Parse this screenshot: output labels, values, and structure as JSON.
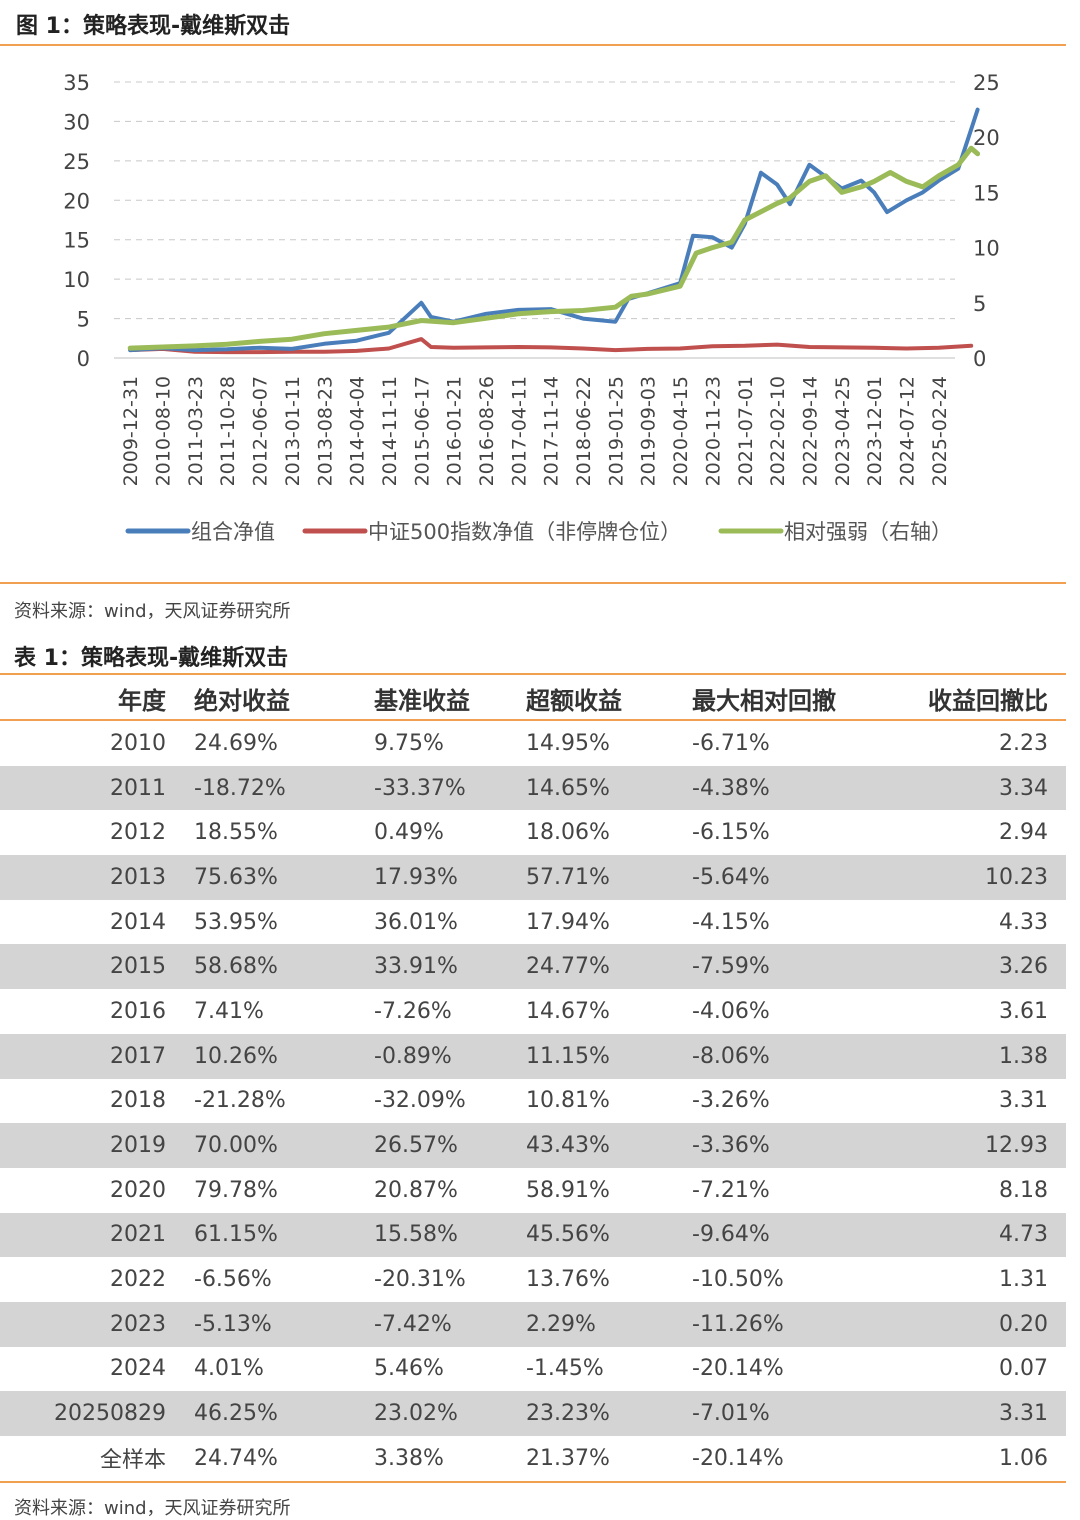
{
  "figure": {
    "title": "图 1：策略表现-戴维斯双击",
    "source": "资料来源：wind，天风证券研究所"
  },
  "chart_data": {
    "type": "line",
    "x_ticks": [
      "2009-12-31",
      "2010-08-10",
      "2011-03-23",
      "2011-10-28",
      "2012-06-07",
      "2013-01-11",
      "2013-08-23",
      "2014-04-04",
      "2014-11-11",
      "2015-06-17",
      "2016-01-21",
      "2016-08-26",
      "2017-04-11",
      "2017-11-14",
      "2018-06-22",
      "2019-01-25",
      "2019-09-03",
      "2020-04-15",
      "2020-11-23",
      "2021-07-01",
      "2022-02-10",
      "2022-09-14",
      "2023-04-25",
      "2023-12-01",
      "2024-07-12",
      "2025-02-24"
    ],
    "y_left": {
      "min": 0,
      "max": 35,
      "ticks": [
        0,
        5,
        10,
        15,
        20,
        25,
        30,
        35
      ]
    },
    "y_right": {
      "min": 0,
      "max": 25,
      "ticks": [
        0,
        5,
        10,
        15,
        20,
        25
      ]
    },
    "grid": "horizontal dashed",
    "legend_position": "bottom",
    "series": [
      {
        "name": "组合净值",
        "axis": "left",
        "color": "#4A7EBB",
        "points": [
          [
            0,
            1.0
          ],
          [
            1,
            1.25
          ],
          [
            2,
            1.0
          ],
          [
            3,
            1.1
          ],
          [
            4,
            1.3
          ],
          [
            5,
            1.15
          ],
          [
            6,
            1.8
          ],
          [
            7,
            2.2
          ],
          [
            8,
            3.2
          ],
          [
            9,
            7.0
          ],
          [
            9.3,
            5.2
          ],
          [
            10,
            4.6
          ],
          [
            11,
            5.6
          ],
          [
            12,
            6.1
          ],
          [
            13,
            6.2
          ],
          [
            14,
            5.0
          ],
          [
            15,
            4.6
          ],
          [
            15.4,
            7.5
          ],
          [
            16,
            8.2
          ],
          [
            17,
            9.5
          ],
          [
            17.4,
            15.5
          ],
          [
            18,
            15.3
          ],
          [
            18.6,
            14.0
          ],
          [
            19,
            17.0
          ],
          [
            19.5,
            23.5
          ],
          [
            20,
            22.0
          ],
          [
            20.4,
            19.5
          ],
          [
            21,
            24.5
          ],
          [
            21.5,
            23.0
          ],
          [
            22,
            21.5
          ],
          [
            22.6,
            22.5
          ],
          [
            23,
            21.0
          ],
          [
            23.4,
            18.5
          ],
          [
            24,
            20.0
          ],
          [
            24.5,
            21.0
          ],
          [
            25,
            22.5
          ],
          [
            25.6,
            24.0
          ],
          [
            26,
            29.0
          ],
          [
            26.2,
            31.5
          ]
        ]
      },
      {
        "name": "中证500指数净值（非停牌仓位）",
        "axis": "left",
        "color": "#C0504D",
        "points": [
          [
            0,
            1.0
          ],
          [
            1,
            1.15
          ],
          [
            2,
            0.8
          ],
          [
            3,
            0.75
          ],
          [
            4,
            0.75
          ],
          [
            5,
            0.8
          ],
          [
            6,
            0.8
          ],
          [
            7,
            0.9
          ],
          [
            8,
            1.2
          ],
          [
            9,
            2.4
          ],
          [
            9.3,
            1.4
          ],
          [
            10,
            1.3
          ],
          [
            11,
            1.35
          ],
          [
            12,
            1.4
          ],
          [
            13,
            1.35
          ],
          [
            14,
            1.2
          ],
          [
            15,
            1.0
          ],
          [
            16,
            1.15
          ],
          [
            17,
            1.2
          ],
          [
            18,
            1.5
          ],
          [
            19,
            1.55
          ],
          [
            20,
            1.7
          ],
          [
            21,
            1.4
          ],
          [
            22,
            1.35
          ],
          [
            23,
            1.3
          ],
          [
            24,
            1.2
          ],
          [
            25,
            1.3
          ],
          [
            26,
            1.55
          ]
        ]
      },
      {
        "name": "相对强弱（右轴）",
        "axis": "right",
        "color": "#9BBB59",
        "points": [
          [
            0,
            0.9
          ],
          [
            1,
            1.0
          ],
          [
            2,
            1.1
          ],
          [
            3,
            1.25
          ],
          [
            4,
            1.5
          ],
          [
            5,
            1.7
          ],
          [
            6,
            2.2
          ],
          [
            7,
            2.5
          ],
          [
            8,
            2.8
          ],
          [
            9,
            3.4
          ],
          [
            9.5,
            3.3
          ],
          [
            10,
            3.2
          ],
          [
            11,
            3.6
          ],
          [
            12,
            4.0
          ],
          [
            13,
            4.2
          ],
          [
            14,
            4.3
          ],
          [
            15,
            4.6
          ],
          [
            15.5,
            5.6
          ],
          [
            16,
            5.8
          ],
          [
            17,
            6.5
          ],
          [
            17.5,
            9.5
          ],
          [
            18,
            10.0
          ],
          [
            18.6,
            10.5
          ],
          [
            19,
            12.5
          ],
          [
            20,
            14.0
          ],
          [
            20.4,
            14.5
          ],
          [
            21,
            16.0
          ],
          [
            21.5,
            16.5
          ],
          [
            22,
            15.0
          ],
          [
            22.6,
            15.5
          ],
          [
            23,
            16.0
          ],
          [
            23.5,
            16.8
          ],
          [
            24,
            16.0
          ],
          [
            24.5,
            15.5
          ],
          [
            25,
            16.5
          ],
          [
            25.6,
            17.5
          ],
          [
            26,
            19.0
          ],
          [
            26.2,
            18.5
          ]
        ]
      }
    ]
  },
  "table": {
    "title": "表 1：策略表现-戴维斯双击",
    "source": "资料来源：wind，天风证券研究所",
    "headers": [
      "年度",
      "绝对收益",
      "基准收益",
      "超额收益",
      "最大相对回撤",
      "收益回撤比"
    ],
    "rows": [
      [
        "2010",
        "24.69%",
        "9.75%",
        "14.95%",
        "-6.71%",
        "2.23"
      ],
      [
        "2011",
        "-18.72%",
        "-33.37%",
        "14.65%",
        "-4.38%",
        "3.34"
      ],
      [
        "2012",
        "18.55%",
        "0.49%",
        "18.06%",
        "-6.15%",
        "2.94"
      ],
      [
        "2013",
        "75.63%",
        "17.93%",
        "57.71%",
        "-5.64%",
        "10.23"
      ],
      [
        "2014",
        "53.95%",
        "36.01%",
        "17.94%",
        "-4.15%",
        "4.33"
      ],
      [
        "2015",
        "58.68%",
        "33.91%",
        "24.77%",
        "-7.59%",
        "3.26"
      ],
      [
        "2016",
        "7.41%",
        "-7.26%",
        "14.67%",
        "-4.06%",
        "3.61"
      ],
      [
        "2017",
        "10.26%",
        "-0.89%",
        "11.15%",
        "-8.06%",
        "1.38"
      ],
      [
        "2018",
        "-21.28%",
        "-32.09%",
        "10.81%",
        "-3.26%",
        "3.31"
      ],
      [
        "2019",
        "70.00%",
        "26.57%",
        "43.43%",
        "-3.36%",
        "12.93"
      ],
      [
        "2020",
        "79.78%",
        "20.87%",
        "58.91%",
        "-7.21%",
        "8.18"
      ],
      [
        "2021",
        "61.15%",
        "15.58%",
        "45.56%",
        "-9.64%",
        "4.73"
      ],
      [
        "2022",
        "-6.56%",
        "-20.31%",
        "13.76%",
        "-10.50%",
        "1.31"
      ],
      [
        "2023",
        "-5.13%",
        "-7.42%",
        "2.29%",
        "-11.26%",
        "0.20"
      ],
      [
        "2024",
        "4.01%",
        "5.46%",
        "-1.45%",
        "-20.14%",
        "0.07"
      ],
      [
        "20250829",
        "46.25%",
        "23.02%",
        "23.23%",
        "-7.01%",
        "3.31"
      ],
      [
        "全样本",
        "24.74%",
        "3.38%",
        "21.37%",
        "-20.14%",
        "1.06"
      ]
    ]
  }
}
